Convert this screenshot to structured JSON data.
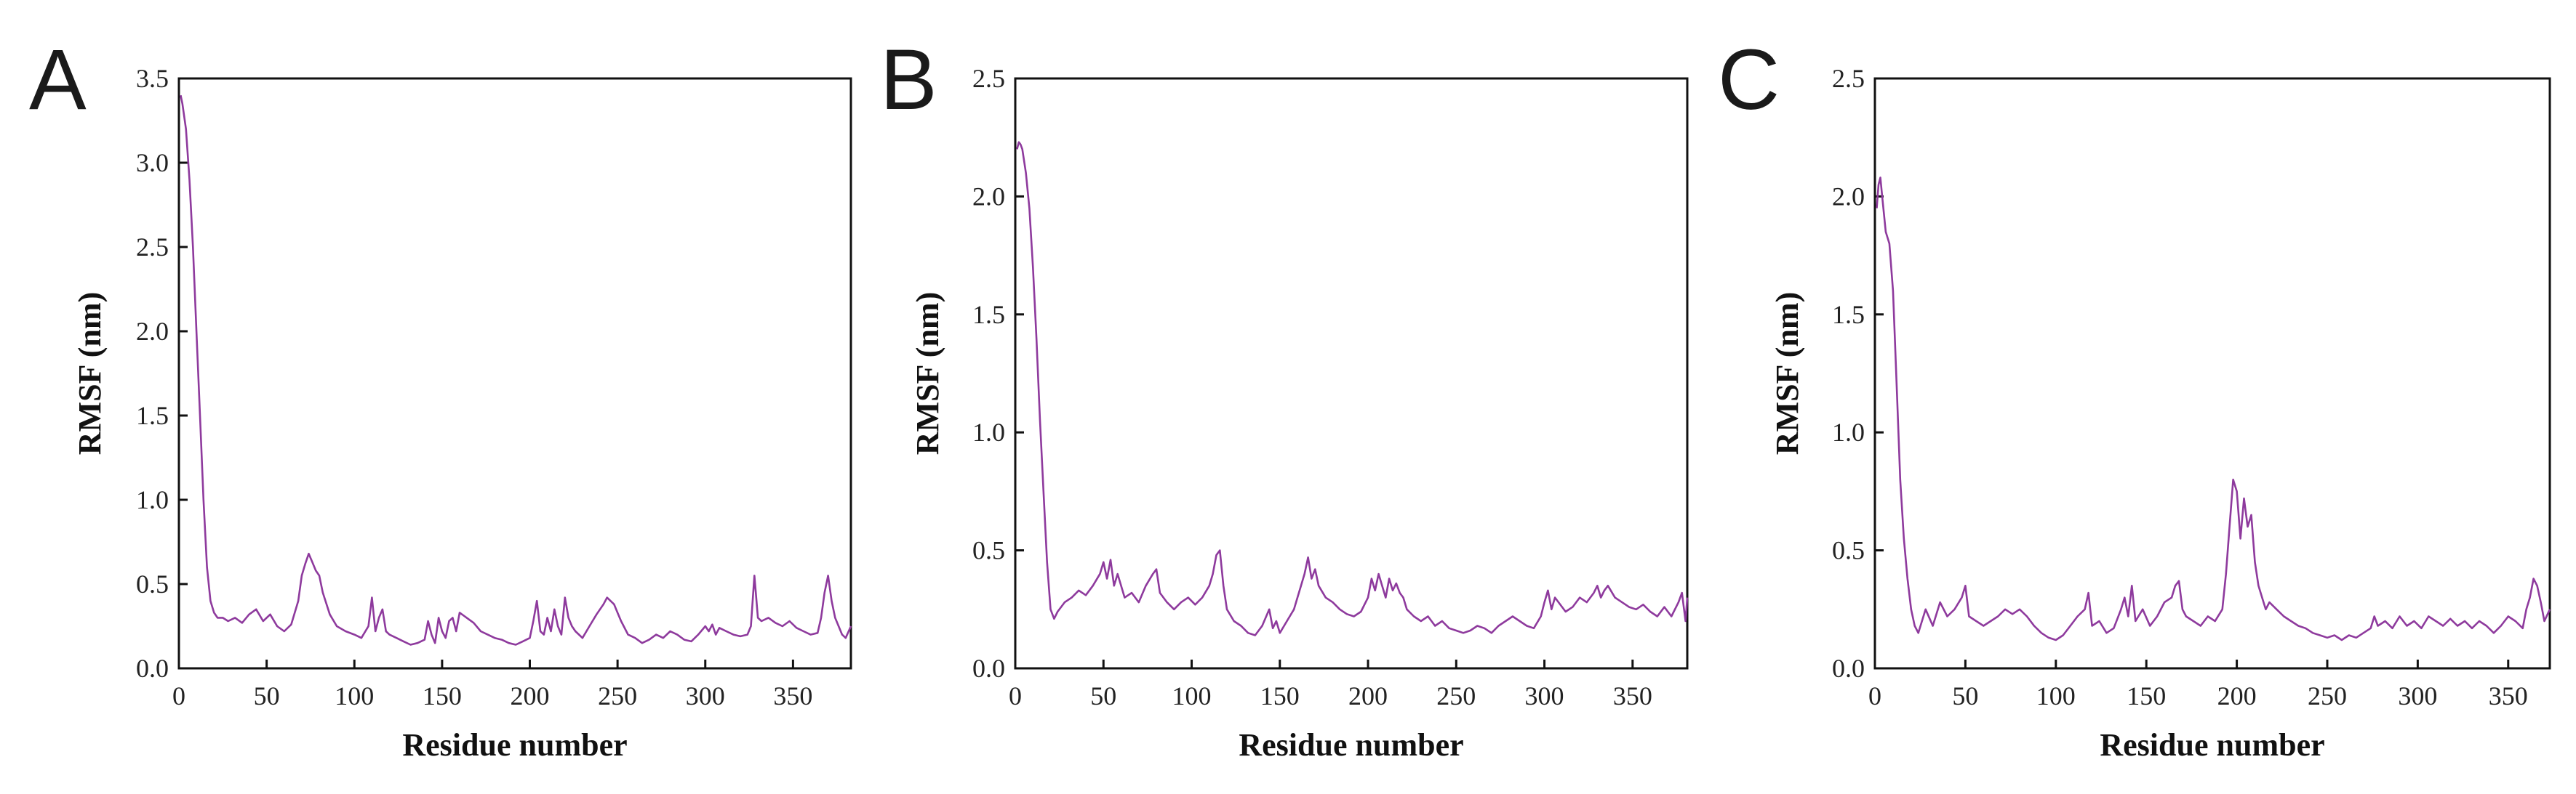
{
  "panels": [
    {
      "letter": "A",
      "xlabel": "Residue number",
      "ylabel": "RMSF (nm)"
    },
    {
      "letter": "B",
      "xlabel": "Residue number",
      "ylabel": "RMSF (nm)"
    },
    {
      "letter": "C",
      "xlabel": "Residue number",
      "ylabel": "RMSF (nm)"
    }
  ],
  "colors": {
    "series": "#8e3a9d",
    "axis": "#111111"
  },
  "chart_data": [
    {
      "type": "line",
      "panel": "A",
      "title": "",
      "xlabel": "Residue number",
      "ylabel": "RMSF (nm)",
      "xlim": [
        0,
        383
      ],
      "ylim": [
        0,
        3.5
      ],
      "xticks": [
        0,
        50,
        100,
        150,
        200,
        250,
        300,
        350
      ],
      "yticks": [
        0.0,
        0.5,
        1.0,
        1.5,
        2.0,
        2.5,
        3.0,
        3.5
      ],
      "grid": false,
      "series": [
        {
          "x": [
            1,
            2,
            4,
            6,
            8,
            10,
            12,
            14,
            16,
            18,
            20,
            22,
            25,
            28,
            32,
            36,
            40,
            44,
            48,
            52,
            56,
            60,
            64,
            68,
            70,
            72,
            74,
            76,
            78,
            80,
            82,
            86,
            90,
            95,
            100,
            104,
            108,
            110,
            112,
            114,
            116,
            118,
            120,
            124,
            128,
            132,
            136,
            140,
            142,
            144,
            146,
            148,
            150,
            152,
            154,
            156,
            158,
            160,
            164,
            168,
            172,
            176,
            180,
            184,
            188,
            192,
            196,
            200,
            202,
            204,
            206,
            208,
            210,
            212,
            214,
            216,
            218,
            220,
            222,
            224,
            226,
            230,
            234,
            238,
            242,
            244,
            246,
            248,
            250,
            252,
            256,
            260,
            264,
            268,
            272,
            276,
            280,
            284,
            288,
            292,
            296,
            300,
            302,
            304,
            306,
            308,
            312,
            316,
            320,
            324,
            326,
            328,
            330,
            332,
            336,
            340,
            344,
            348,
            352,
            356,
            360,
            364,
            366,
            368,
            370,
            372,
            374,
            376,
            378,
            380,
            383
          ],
          "y": [
            3.4,
            3.35,
            3.2,
            2.9,
            2.5,
            2.0,
            1.5,
            1.0,
            0.6,
            0.4,
            0.33,
            0.3,
            0.3,
            0.28,
            0.3,
            0.27,
            0.32,
            0.35,
            0.28,
            0.32,
            0.25,
            0.22,
            0.26,
            0.4,
            0.55,
            0.62,
            0.68,
            0.63,
            0.58,
            0.55,
            0.45,
            0.32,
            0.25,
            0.22,
            0.2,
            0.18,
            0.25,
            0.42,
            0.22,
            0.3,
            0.35,
            0.22,
            0.2,
            0.18,
            0.16,
            0.14,
            0.15,
            0.17,
            0.28,
            0.2,
            0.15,
            0.3,
            0.22,
            0.18,
            0.28,
            0.3,
            0.22,
            0.33,
            0.3,
            0.27,
            0.22,
            0.2,
            0.18,
            0.17,
            0.15,
            0.14,
            0.16,
            0.18,
            0.28,
            0.4,
            0.22,
            0.2,
            0.3,
            0.22,
            0.35,
            0.25,
            0.2,
            0.42,
            0.3,
            0.25,
            0.22,
            0.18,
            0.25,
            0.32,
            0.38,
            0.42,
            0.4,
            0.38,
            0.33,
            0.28,
            0.2,
            0.18,
            0.15,
            0.17,
            0.2,
            0.18,
            0.22,
            0.2,
            0.17,
            0.16,
            0.2,
            0.25,
            0.22,
            0.26,
            0.2,
            0.24,
            0.22,
            0.2,
            0.19,
            0.2,
            0.25,
            0.55,
            0.3,
            0.28,
            0.3,
            0.27,
            0.25,
            0.28,
            0.24,
            0.22,
            0.2,
            0.21,
            0.3,
            0.45,
            0.55,
            0.4,
            0.3,
            0.25,
            0.2,
            0.18,
            0.25
          ]
        }
      ]
    },
    {
      "type": "line",
      "panel": "B",
      "title": "",
      "xlabel": "Residue number",
      "ylabel": "RMSF (nm)",
      "xlim": [
        0,
        381
      ],
      "ylim": [
        0,
        2.5
      ],
      "xticks": [
        0,
        50,
        100,
        150,
        200,
        250,
        300,
        350
      ],
      "yticks": [
        0.0,
        0.5,
        1.0,
        1.5,
        2.0,
        2.5
      ],
      "grid": false,
      "series": [
        {
          "x": [
            1,
            2,
            3,
            4,
            6,
            8,
            10,
            12,
            14,
            16,
            18,
            20,
            22,
            24,
            28,
            32,
            36,
            40,
            44,
            48,
            50,
            52,
            54,
            56,
            58,
            62,
            66,
            70,
            74,
            78,
            80,
            82,
            86,
            90,
            94,
            98,
            102,
            106,
            110,
            112,
            114,
            116,
            118,
            120,
            124,
            128,
            132,
            136,
            140,
            144,
            146,
            148,
            150,
            154,
            158,
            160,
            162,
            164,
            166,
            168,
            170,
            172,
            176,
            180,
            184,
            188,
            192,
            196,
            200,
            202,
            204,
            206,
            208,
            210,
            212,
            214,
            216,
            218,
            220,
            222,
            226,
            230,
            234,
            238,
            242,
            246,
            250,
            254,
            258,
            262,
            266,
            270,
            274,
            278,
            282,
            286,
            290,
            294,
            298,
            300,
            302,
            304,
            306,
            308,
            312,
            316,
            320,
            324,
            328,
            330,
            332,
            334,
            336,
            340,
            344,
            348,
            352,
            356,
            360,
            364,
            368,
            372,
            376,
            378,
            380,
            381
          ],
          "y": [
            2.2,
            2.23,
            2.22,
            2.2,
            2.1,
            1.95,
            1.7,
            1.4,
            1.05,
            0.75,
            0.45,
            0.25,
            0.21,
            0.24,
            0.28,
            0.3,
            0.33,
            0.31,
            0.35,
            0.4,
            0.45,
            0.38,
            0.46,
            0.35,
            0.4,
            0.3,
            0.32,
            0.28,
            0.35,
            0.4,
            0.42,
            0.32,
            0.28,
            0.25,
            0.28,
            0.3,
            0.27,
            0.3,
            0.35,
            0.4,
            0.48,
            0.5,
            0.35,
            0.25,
            0.2,
            0.18,
            0.15,
            0.14,
            0.18,
            0.25,
            0.17,
            0.2,
            0.15,
            0.2,
            0.25,
            0.3,
            0.35,
            0.4,
            0.47,
            0.38,
            0.42,
            0.35,
            0.3,
            0.28,
            0.25,
            0.23,
            0.22,
            0.24,
            0.3,
            0.38,
            0.33,
            0.4,
            0.35,
            0.3,
            0.38,
            0.33,
            0.36,
            0.32,
            0.3,
            0.25,
            0.22,
            0.2,
            0.22,
            0.18,
            0.2,
            0.17,
            0.16,
            0.15,
            0.16,
            0.18,
            0.17,
            0.15,
            0.18,
            0.2,
            0.22,
            0.2,
            0.18,
            0.17,
            0.22,
            0.28,
            0.33,
            0.25,
            0.3,
            0.28,
            0.24,
            0.26,
            0.3,
            0.28,
            0.32,
            0.35,
            0.3,
            0.33,
            0.35,
            0.3,
            0.28,
            0.26,
            0.25,
            0.27,
            0.24,
            0.22,
            0.26,
            0.22,
            0.28,
            0.32,
            0.2,
            0.3
          ]
        }
      ]
    },
    {
      "type": "line",
      "panel": "C",
      "title": "",
      "xlabel": "Residue number",
      "ylabel": "RMSF (nm)",
      "xlim": [
        0,
        373
      ],
      "ylim": [
        0,
        2.5
      ],
      "xticks": [
        0,
        50,
        100,
        150,
        200,
        250,
        300,
        350
      ],
      "yticks": [
        0.0,
        0.5,
        1.0,
        1.5,
        2.0,
        2.5
      ],
      "grid": false,
      "series": [
        {
          "x": [
            1,
            2,
            3,
            4,
            6,
            8,
            10,
            12,
            14,
            16,
            18,
            20,
            22,
            24,
            28,
            32,
            36,
            40,
            44,
            48,
            50,
            52,
            56,
            60,
            64,
            68,
            72,
            76,
            80,
            84,
            88,
            92,
            96,
            100,
            104,
            108,
            112,
            116,
            118,
            120,
            124,
            128,
            132,
            136,
            138,
            140,
            142,
            144,
            148,
            152,
            156,
            160,
            164,
            166,
            168,
            170,
            172,
            176,
            180,
            184,
            188,
            192,
            194,
            196,
            198,
            200,
            202,
            204,
            206,
            208,
            210,
            212,
            214,
            216,
            218,
            222,
            226,
            230,
            234,
            238,
            242,
            246,
            250,
            254,
            258,
            262,
            266,
            270,
            274,
            276,
            278,
            282,
            286,
            290,
            294,
            298,
            302,
            306,
            310,
            314,
            318,
            322,
            326,
            330,
            334,
            338,
            342,
            346,
            350,
            354,
            358,
            360,
            362,
            364,
            366,
            368,
            370,
            373
          ],
          "y": [
            1.95,
            2.05,
            2.08,
            2.0,
            1.85,
            1.8,
            1.6,
            1.2,
            0.8,
            0.55,
            0.38,
            0.25,
            0.18,
            0.15,
            0.25,
            0.18,
            0.28,
            0.22,
            0.25,
            0.3,
            0.35,
            0.22,
            0.2,
            0.18,
            0.2,
            0.22,
            0.25,
            0.23,
            0.25,
            0.22,
            0.18,
            0.15,
            0.13,
            0.12,
            0.14,
            0.18,
            0.22,
            0.25,
            0.32,
            0.18,
            0.2,
            0.15,
            0.17,
            0.25,
            0.3,
            0.22,
            0.35,
            0.2,
            0.25,
            0.18,
            0.22,
            0.28,
            0.3,
            0.35,
            0.37,
            0.25,
            0.22,
            0.2,
            0.18,
            0.22,
            0.2,
            0.25,
            0.4,
            0.6,
            0.8,
            0.75,
            0.55,
            0.72,
            0.6,
            0.65,
            0.45,
            0.35,
            0.3,
            0.25,
            0.28,
            0.25,
            0.22,
            0.2,
            0.18,
            0.17,
            0.15,
            0.14,
            0.13,
            0.14,
            0.12,
            0.14,
            0.13,
            0.15,
            0.17,
            0.22,
            0.18,
            0.2,
            0.17,
            0.22,
            0.18,
            0.2,
            0.17,
            0.22,
            0.2,
            0.18,
            0.21,
            0.18,
            0.2,
            0.17,
            0.2,
            0.18,
            0.15,
            0.18,
            0.22,
            0.2,
            0.17,
            0.25,
            0.3,
            0.38,
            0.35,
            0.28,
            0.2,
            0.25
          ]
        }
      ]
    }
  ]
}
